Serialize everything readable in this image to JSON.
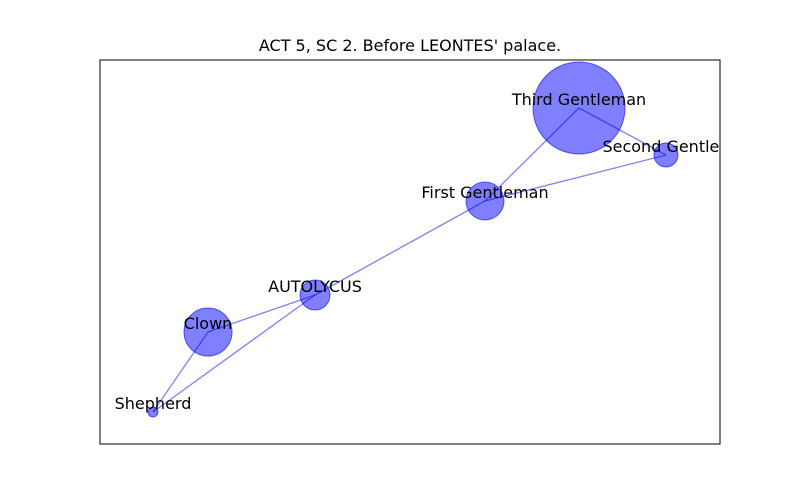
{
  "title": "ACT 5, SC 2. Before LEONTES' palace.",
  "colors": {
    "node": "#0000ff",
    "edge": "#0000ff",
    "frame": "#000000"
  },
  "nodes": [
    {
      "id": "third-gentleman",
      "label": "Third Gentleman",
      "weight": 21
    },
    {
      "id": "second-gentleman",
      "label": "Second Gentlen",
      "weight": 2
    },
    {
      "id": "first-gentleman",
      "label": "First Gentleman",
      "weight": 6
    },
    {
      "id": "autolycus",
      "label": "AUTOLYCUS",
      "weight": 3
    },
    {
      "id": "clown",
      "label": "Clown",
      "weight": 8
    },
    {
      "id": "shepherd",
      "label": "Shepherd",
      "weight": 0.5
    }
  ],
  "edges": [
    [
      "third-gentleman",
      "second-gentleman"
    ],
    [
      "third-gentleman",
      "first-gentleman"
    ],
    [
      "second-gentleman",
      "first-gentleman"
    ],
    [
      "first-gentleman",
      "autolycus"
    ],
    [
      "autolycus",
      "clown"
    ],
    [
      "autolycus",
      "shepherd"
    ],
    [
      "clown",
      "shepherd"
    ]
  ]
}
